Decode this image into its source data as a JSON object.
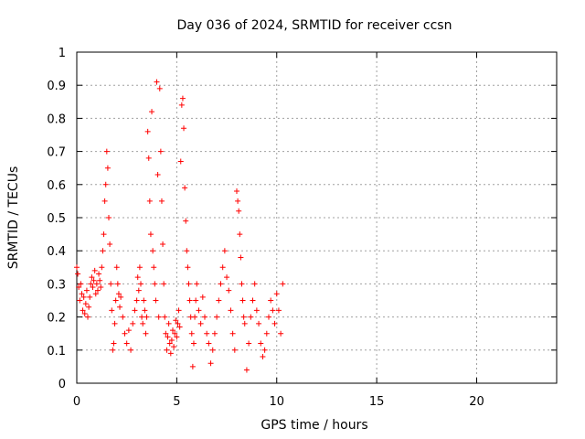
{
  "chart_data": {
    "type": "scatter",
    "title": "Day 036 of 2024, SRMTID for receiver ccsn",
    "xlabel": "GPS time / hours",
    "ylabel": "SRMTID / TECUs",
    "xlim": [
      0,
      24
    ],
    "ylim": [
      0,
      1
    ],
    "xticks": [
      0,
      5,
      10,
      15,
      20
    ],
    "yticks": [
      0,
      0.1,
      0.2,
      0.3,
      0.4,
      0.5,
      0.6,
      0.7,
      0.8,
      0.9,
      1
    ],
    "ytick_labels": [
      "0",
      "0.1",
      "0.2",
      "0.3",
      "0.4",
      "0.5",
      "0.6",
      "0.7",
      "0.8",
      "0.9",
      "1"
    ],
    "grid": true,
    "marker": "+",
    "color": "#ff0000",
    "series": [
      {
        "name": "SRMTID",
        "points": [
          [
            0.0,
            0.35
          ],
          [
            0.05,
            0.33
          ],
          [
            0.1,
            0.29
          ],
          [
            0.15,
            0.25
          ],
          [
            0.2,
            0.3
          ],
          [
            0.25,
            0.27
          ],
          [
            0.3,
            0.22
          ],
          [
            0.35,
            0.26
          ],
          [
            0.4,
            0.21
          ],
          [
            0.45,
            0.24
          ],
          [
            0.5,
            0.28
          ],
          [
            0.55,
            0.2
          ],
          [
            0.6,
            0.23
          ],
          [
            0.65,
            0.26
          ],
          [
            0.7,
            0.3
          ],
          [
            0.75,
            0.32
          ],
          [
            0.8,
            0.29
          ],
          [
            0.85,
            0.31
          ],
          [
            0.9,
            0.34
          ],
          [
            0.95,
            0.27
          ],
          [
            1.0,
            0.3
          ],
          [
            1.05,
            0.28
          ],
          [
            1.1,
            0.33
          ],
          [
            1.15,
            0.31
          ],
          [
            1.2,
            0.29
          ],
          [
            1.25,
            0.35
          ],
          [
            1.3,
            0.4
          ],
          [
            1.35,
            0.45
          ],
          [
            1.4,
            0.55
          ],
          [
            1.45,
            0.6
          ],
          [
            1.5,
            0.7
          ],
          [
            1.55,
            0.65
          ],
          [
            1.6,
            0.5
          ],
          [
            1.65,
            0.42
          ],
          [
            1.7,
            0.3
          ],
          [
            1.75,
            0.22
          ],
          [
            1.8,
            0.1
          ],
          [
            1.85,
            0.12
          ],
          [
            1.9,
            0.18
          ],
          [
            1.95,
            0.25
          ],
          [
            2.0,
            0.35
          ],
          [
            2.05,
            0.3
          ],
          [
            2.1,
            0.27
          ],
          [
            2.15,
            0.23
          ],
          [
            2.2,
            0.26
          ],
          [
            2.3,
            0.2
          ],
          [
            2.4,
            0.15
          ],
          [
            2.5,
            0.12
          ],
          [
            2.6,
            0.16
          ],
          [
            2.7,
            0.1
          ],
          [
            2.8,
            0.18
          ],
          [
            2.9,
            0.22
          ],
          [
            3.0,
            0.25
          ],
          [
            3.05,
            0.32
          ],
          [
            3.1,
            0.28
          ],
          [
            3.15,
            0.35
          ],
          [
            3.2,
            0.3
          ],
          [
            3.25,
            0.2
          ],
          [
            3.3,
            0.18
          ],
          [
            3.35,
            0.25
          ],
          [
            3.4,
            0.22
          ],
          [
            3.45,
            0.15
          ],
          [
            3.5,
            0.2
          ],
          [
            3.55,
            0.76
          ],
          [
            3.6,
            0.68
          ],
          [
            3.65,
            0.55
          ],
          [
            3.7,
            0.45
          ],
          [
            3.75,
            0.82
          ],
          [
            3.8,
            0.4
          ],
          [
            3.85,
            0.35
          ],
          [
            3.9,
            0.3
          ],
          [
            3.95,
            0.25
          ],
          [
            4.0,
            0.91
          ],
          [
            4.05,
            0.63
          ],
          [
            4.1,
            0.2
          ],
          [
            4.15,
            0.89
          ],
          [
            4.2,
            0.7
          ],
          [
            4.25,
            0.55
          ],
          [
            4.3,
            0.42
          ],
          [
            4.35,
            0.3
          ],
          [
            4.4,
            0.2
          ],
          [
            4.45,
            0.15
          ],
          [
            4.5,
            0.1
          ],
          [
            4.55,
            0.14
          ],
          [
            4.6,
            0.18
          ],
          [
            4.65,
            0.12
          ],
          [
            4.7,
            0.09
          ],
          [
            4.75,
            0.13
          ],
          [
            4.8,
            0.16
          ],
          [
            4.85,
            0.11
          ],
          [
            4.9,
            0.15
          ],
          [
            4.95,
            0.19
          ],
          [
            5.0,
            0.14
          ],
          [
            5.05,
            0.18
          ],
          [
            5.1,
            0.22
          ],
          [
            5.15,
            0.17
          ],
          [
            5.2,
            0.67
          ],
          [
            5.25,
            0.84
          ],
          [
            5.3,
            0.86
          ],
          [
            5.35,
            0.77
          ],
          [
            5.4,
            0.59
          ],
          [
            5.45,
            0.49
          ],
          [
            5.5,
            0.4
          ],
          [
            5.55,
            0.35
          ],
          [
            5.6,
            0.3
          ],
          [
            5.65,
            0.25
          ],
          [
            5.7,
            0.2
          ],
          [
            5.75,
            0.15
          ],
          [
            5.8,
            0.05
          ],
          [
            5.85,
            0.12
          ],
          [
            5.9,
            0.2
          ],
          [
            5.95,
            0.25
          ],
          [
            6.0,
            0.3
          ],
          [
            6.1,
            0.22
          ],
          [
            6.2,
            0.18
          ],
          [
            6.3,
            0.26
          ],
          [
            6.4,
            0.2
          ],
          [
            6.5,
            0.15
          ],
          [
            6.6,
            0.12
          ],
          [
            6.7,
            0.06
          ],
          [
            6.8,
            0.1
          ],
          [
            6.9,
            0.15
          ],
          [
            7.0,
            0.2
          ],
          [
            7.1,
            0.25
          ],
          [
            7.2,
            0.3
          ],
          [
            7.3,
            0.35
          ],
          [
            7.4,
            0.4
          ],
          [
            7.5,
            0.32
          ],
          [
            7.6,
            0.28
          ],
          [
            7.7,
            0.22
          ],
          [
            7.8,
            0.15
          ],
          [
            7.9,
            0.1
          ],
          [
            8.0,
            0.58
          ],
          [
            8.05,
            0.55
          ],
          [
            8.1,
            0.52
          ],
          [
            8.15,
            0.45
          ],
          [
            8.2,
            0.38
          ],
          [
            8.25,
            0.3
          ],
          [
            8.3,
            0.25
          ],
          [
            8.35,
            0.2
          ],
          [
            8.4,
            0.18
          ],
          [
            8.5,
            0.04
          ],
          [
            8.6,
            0.12
          ],
          [
            8.7,
            0.2
          ],
          [
            8.8,
            0.25
          ],
          [
            8.9,
            0.3
          ],
          [
            9.0,
            0.22
          ],
          [
            9.1,
            0.18
          ],
          [
            9.2,
            0.12
          ],
          [
            9.3,
            0.08
          ],
          [
            9.4,
            0.1
          ],
          [
            9.5,
            0.15
          ],
          [
            9.6,
            0.2
          ],
          [
            9.7,
            0.25
          ],
          [
            9.8,
            0.22
          ],
          [
            9.9,
            0.18
          ],
          [
            10.0,
            0.27
          ],
          [
            10.1,
            0.22
          ],
          [
            10.2,
            0.15
          ],
          [
            10.3,
            0.3
          ]
        ]
      }
    ]
  }
}
